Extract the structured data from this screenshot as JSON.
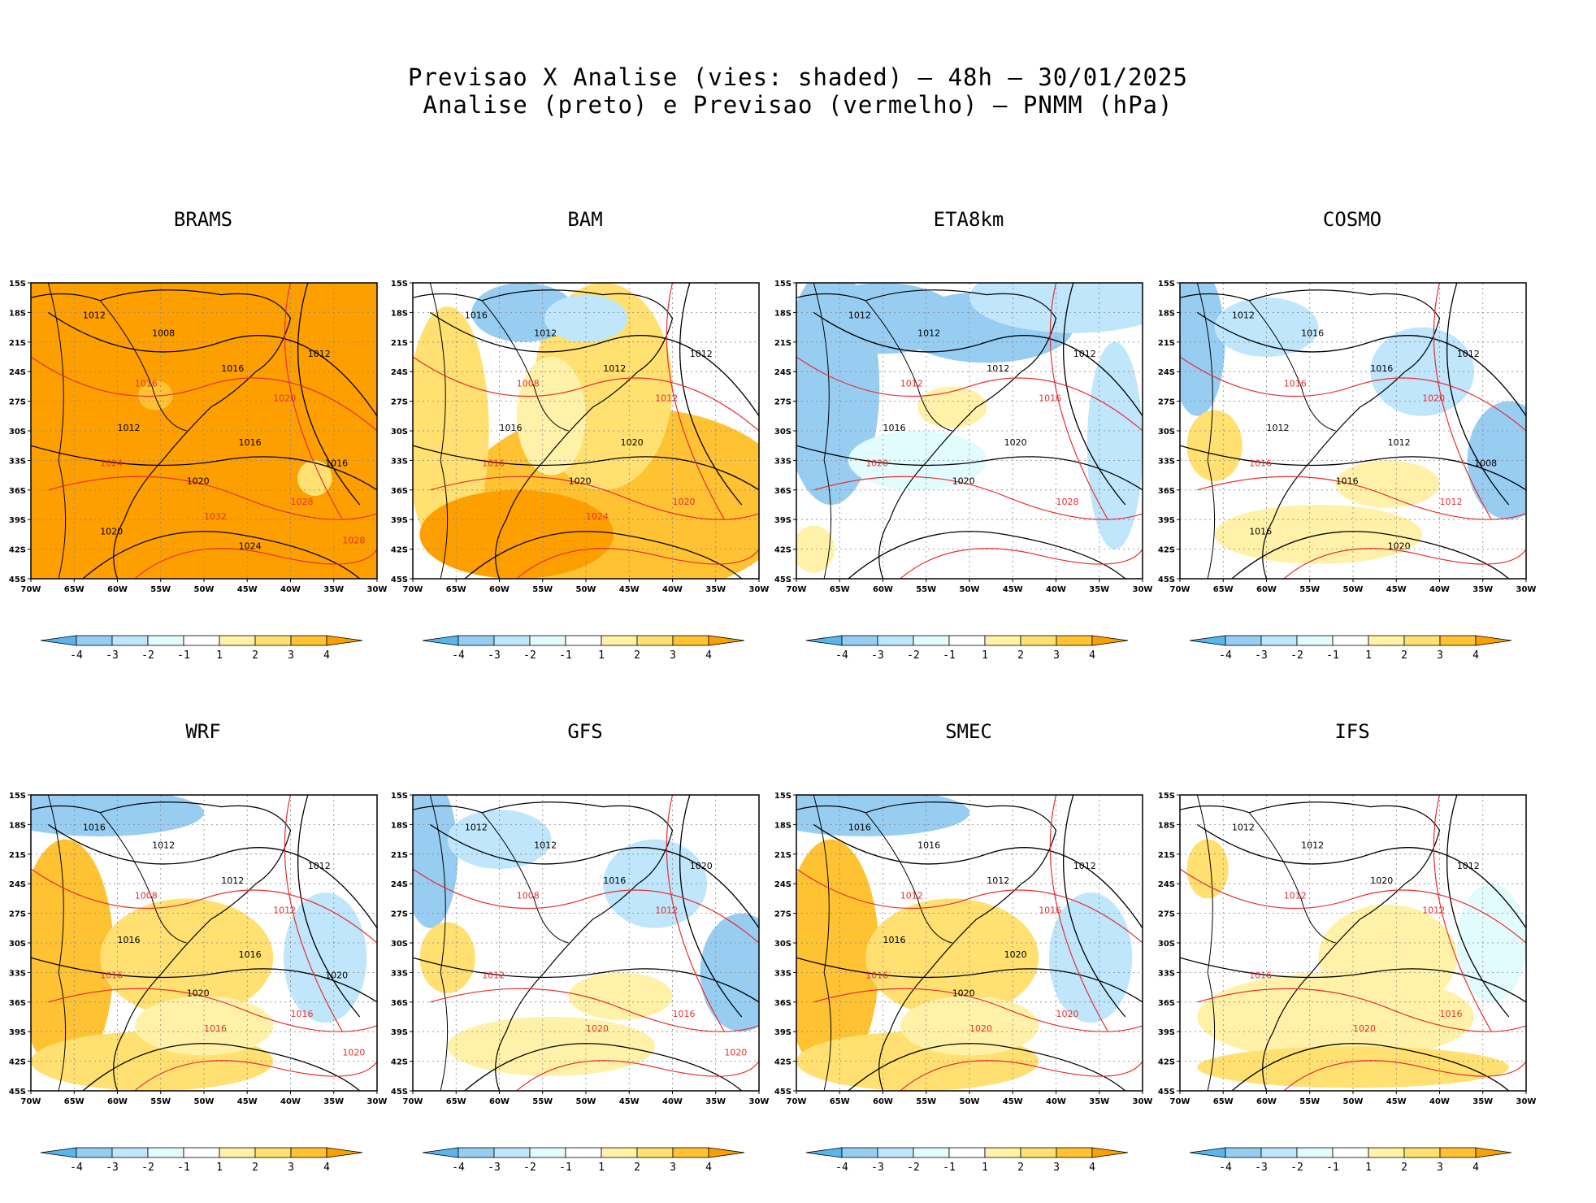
{
  "title_line1": "Previsao X Analise (vies: shaded) — 48h — 30/01/2025",
  "title_line2": "Analise (preto) e Previsao (vermelho) — PNMM (hPa)",
  "lat_ticks": [
    "15S",
    "18S",
    "21S",
    "24S",
    "27S",
    "30S",
    "33S",
    "36S",
    "39S",
    "42S",
    "45S"
  ],
  "lon_ticks": [
    "70W",
    "65W",
    "60W",
    "55W",
    "50W",
    "45W",
    "40W",
    "35W",
    "30W"
  ],
  "colorbar": {
    "labels": [
      "-4",
      "-3",
      "-2",
      "-1",
      "1",
      "2",
      "3",
      "4"
    ],
    "colors": [
      "#55b6f0",
      "#98cdf2",
      "#bfe6fb",
      "#e2fbfc",
      "#ffffff",
      "#fff2a8",
      "#ffe070",
      "#fec232",
      "#fe9f00"
    ]
  },
  "colors": {
    "analysis_line": "#000000",
    "forecast_line": "#e63030",
    "grid": "#888888"
  },
  "panels": [
    {
      "name": "BRAMS",
      "bias": "warm-strong",
      "analysis_labels": [
        "1012",
        "1008",
        "1016",
        "1012",
        "1012",
        "1016",
        "1020",
        "1016",
        "1020",
        "1024"
      ],
      "forecast_labels": [
        "1016",
        "1020",
        "1024",
        "1028",
        "1032",
        "1028"
      ]
    },
    {
      "name": "BAM",
      "bias": "warm",
      "analysis_labels": [
        "1016",
        "1012",
        "1012",
        "1012",
        "1016",
        "1020",
        "1020"
      ],
      "forecast_labels": [
        "1008",
        "1012",
        "1016",
        "1020",
        "1024"
      ]
    },
    {
      "name": "ETA8km",
      "bias": "cool",
      "analysis_labels": [
        "1012",
        "1012",
        "1012",
        "1012",
        "1016",
        "1020",
        "1020"
      ],
      "forecast_labels": [
        "1012",
        "1016",
        "1020",
        "1028"
      ]
    },
    {
      "name": "COSMO",
      "bias": "mixed",
      "analysis_labels": [
        "1012",
        "1016",
        "1016",
        "1012",
        "1012",
        "1012",
        "1016",
        "1008",
        "1016",
        "1020"
      ],
      "forecast_labels": [
        "1016",
        "1020",
        "1016",
        "1012"
      ]
    },
    {
      "name": "WRF",
      "bias": "mixed-warm",
      "analysis_labels": [
        "1016",
        "1012",
        "1012",
        "1012",
        "1016",
        "1016",
        "1020",
        "1020"
      ],
      "forecast_labels": [
        "1008",
        "1012",
        "1016",
        "1016",
        "1016",
        "1020"
      ]
    },
    {
      "name": "GFS",
      "bias": "mixed",
      "analysis_labels": [
        "1012",
        "1012",
        "1016",
        "1020"
      ],
      "forecast_labels": [
        "1008",
        "1012",
        "1012",
        "1016",
        "1020",
        "1020"
      ]
    },
    {
      "name": "SMEC",
      "bias": "mixed-warm",
      "analysis_labels": [
        "1016",
        "1016",
        "1012",
        "1012",
        "1016",
        "1020",
        "1020"
      ],
      "forecast_labels": [
        "1012",
        "1016",
        "1016",
        "1020",
        "1020"
      ]
    },
    {
      "name": "IFS",
      "bias": "mild",
      "analysis_labels": [
        "1012",
        "1012",
        "1020",
        "1012"
      ],
      "forecast_labels": [
        "1012",
        "1012",
        "1016",
        "1016",
        "1020"
      ]
    }
  ]
}
